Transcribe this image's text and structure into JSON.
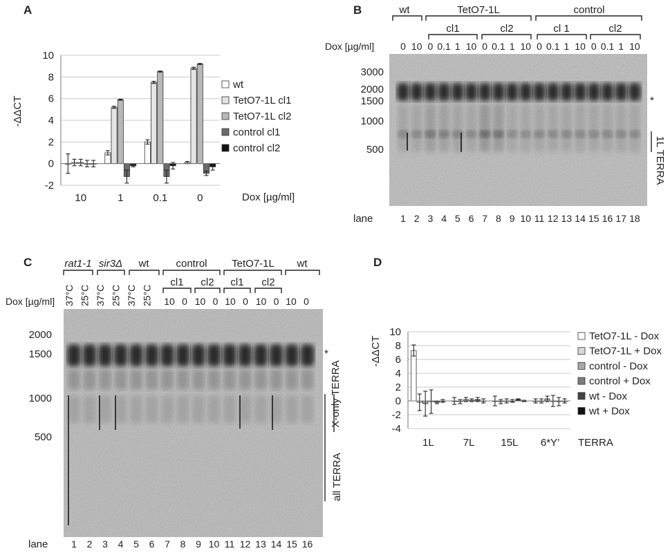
{
  "panels": {
    "a": "A",
    "b": "B",
    "c": "C",
    "d": "D"
  },
  "panel_a": {
    "ylabel": "-ΔΔCT",
    "xlabel": "Dox [µg/ml]",
    "yticks": [
      "10",
      "8",
      "6",
      "4",
      "2",
      "0",
      "-2"
    ],
    "groups": [
      "10",
      "1",
      "0.1",
      "0"
    ],
    "legend": [
      "wt",
      "TetO7-1L cl1",
      "TetO7-1L cl2",
      "control cl1",
      "control cl2"
    ],
    "colors": [
      "#ffffff",
      "#e4e4e4",
      "#b8b8b8",
      "#6b6b6b",
      "#111111"
    ]
  },
  "panel_b": {
    "groups": {
      "wt": "wt",
      "teto": "TetO7-1L",
      "control": "control"
    },
    "subgroups": [
      "cl1",
      "cl2",
      "cl 1",
      "cl2"
    ],
    "dox_label": "Dox [µg/ml]",
    "dox_values": [
      "0",
      "10",
      "0",
      "0.1",
      "1",
      "10",
      "0",
      "0.1",
      "1",
      "10",
      "0",
      "0.1",
      "1",
      "10",
      "0",
      "0.1",
      "1",
      "10"
    ],
    "markers": [
      "3000",
      "2000",
      "1500",
      "1000",
      "500"
    ],
    "star": "*",
    "side_label": "1L TERRA",
    "lane_label": "lane",
    "lanes": [
      "1",
      "2",
      "3",
      "4",
      "5",
      "6",
      "7",
      "8",
      "9",
      "10",
      "11",
      "12",
      "13",
      "14",
      "15",
      "16",
      "17",
      "18"
    ]
  },
  "panel_c": {
    "groups": {
      "rat": "rat1-1",
      "sir": "sir3Δ",
      "wt1": "wt",
      "control": "control",
      "teto": "TetO7-1L",
      "wt2": "wt"
    },
    "subgroups": [
      "cl1",
      "cl2",
      "cl1",
      "cl2"
    ],
    "dox_label": "Dox [µg/ml]",
    "temps": [
      "37°C",
      "25°C",
      "37°C",
      "25°C",
      "37°C",
      "25°C"
    ],
    "dox_values": [
      "10",
      "0",
      "10",
      "0",
      "10",
      "0",
      "10",
      "0",
      "10",
      "0"
    ],
    "markers": [
      "2000",
      "1500",
      "1000",
      "500"
    ],
    "star": "*",
    "side_labels": {
      "xonly": "X-only TERRA",
      "all": "all TERRA"
    },
    "lane_label": "lane",
    "lanes": [
      "1",
      "2",
      "3",
      "4",
      "5",
      "6",
      "7",
      "8",
      "9",
      "10",
      "11",
      "12",
      "13",
      "14",
      "15",
      "16"
    ]
  },
  "panel_d": {
    "ylabel": "-ΔΔCT",
    "yticks": [
      "10",
      "8",
      "6",
      "4",
      "2",
      "0",
      "-2",
      "-4"
    ],
    "groups": [
      "1L",
      "7L",
      "15L",
      "6*Y’"
    ],
    "group_suffix": "TERRA",
    "legend": [
      "TetO7-1L - Dox",
      "TetO7-1L + Dox",
      "control - Dox",
      "control + Dox",
      "wt - Dox",
      "wt + Dox"
    ],
    "colors": [
      "#ffffff",
      "#d8d8d8",
      "#aaaaaa",
      "#7c7c7c",
      "#444444",
      "#111111"
    ]
  },
  "chart_data": [
    {
      "type": "bar",
      "panel": "A",
      "title": "",
      "xlabel": "Dox [µg/ml]",
      "ylabel": "-ΔΔCT",
      "ylim": [
        -2,
        10
      ],
      "grid": true,
      "legend_position": "right",
      "categories": [
        "10",
        "1",
        "0.1",
        "0"
      ],
      "series": [
        {
          "name": "wt",
          "values": [
            0.0,
            1.0,
            2.0,
            0.1
          ],
          "errors": [
            0.9,
            0.2,
            0.2,
            0.1
          ]
        },
        {
          "name": "TetO7-1L cl1",
          "values": [
            0.1,
            5.2,
            7.5,
            8.8
          ],
          "errors": [
            0.3,
            0.1,
            0.1,
            0.1
          ]
        },
        {
          "name": "TetO7-1L cl2",
          "values": [
            0.1,
            5.9,
            8.5,
            9.2
          ],
          "errors": [
            0.3,
            0.05,
            0.05,
            0.05
          ]
        },
        {
          "name": "control cl1",
          "values": [
            0.0,
            -1.2,
            -1.2,
            -0.9
          ],
          "errors": [
            0.3,
            0.6,
            0.6,
            0.2
          ]
        },
        {
          "name": "control cl2",
          "values": [
            0.0,
            -0.2,
            -0.2,
            -0.3
          ],
          "errors": [
            0.3,
            0.1,
            0.3,
            0.3
          ]
        }
      ]
    },
    {
      "type": "bar",
      "panel": "D",
      "title": "",
      "xlabel": "",
      "ylabel": "-ΔΔCT",
      "ylim": [
        -4,
        10
      ],
      "grid": true,
      "legend_position": "right",
      "categories": [
        "1L",
        "7L",
        "15L",
        "6*Y’"
      ],
      "series": [
        {
          "name": "TetO7-1L - Dox",
          "values": [
            7.3,
            0.0,
            0.0,
            0.0
          ],
          "errors": [
            0.8,
            0.5,
            0.7,
            0.3
          ]
        },
        {
          "name": "TetO7-1L + Dox",
          "values": [
            -0.2,
            -0.1,
            -0.1,
            0.0
          ],
          "errors": [
            1.2,
            0.3,
            0.3,
            0.3
          ]
        },
        {
          "name": "control - Dox",
          "values": [
            -0.4,
            0.2,
            0.0,
            0.3
          ],
          "errors": [
            1.8,
            0.3,
            0.3,
            0.4
          ]
        },
        {
          "name": "control + Dox",
          "values": [
            -0.1,
            0.1,
            0.0,
            0.0
          ],
          "errors": [
            1.7,
            0.2,
            0.2,
            0.8
          ]
        },
        {
          "name": "wt - Dox",
          "values": [
            -0.2,
            0.2,
            0.2,
            -0.1
          ],
          "errors": [
            0.2,
            0.3,
            0.1,
            0.6
          ]
        },
        {
          "name": "wt + Dox",
          "values": [
            0.0,
            0.0,
            0.0,
            0.0
          ],
          "errors": [
            0.2,
            0.3,
            0.1,
            0.3
          ]
        }
      ]
    }
  ]
}
